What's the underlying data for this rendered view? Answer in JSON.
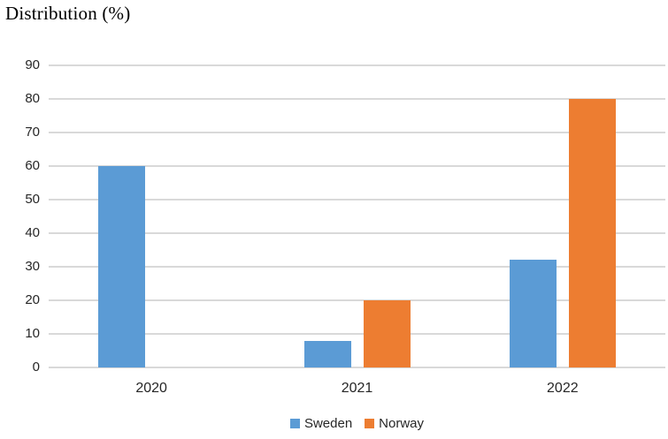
{
  "chart_data": {
    "type": "bar",
    "title": "Distribution (%)",
    "categories": [
      "2020",
      "2021",
      "2022"
    ],
    "series": [
      {
        "name": "Sweden",
        "color": "#5B9BD5",
        "values": [
          60,
          8,
          32
        ]
      },
      {
        "name": "Norway",
        "color": "#ED7D31",
        "values": [
          0,
          20,
          80
        ]
      }
    ],
    "xlabel": "",
    "ylabel": "",
    "ylim": [
      0,
      90
    ],
    "ytick_step": 10,
    "grid": true,
    "legend_position": "bottom"
  },
  "colors": {
    "gridline": "#D9D9D9",
    "text": "#262626",
    "title_text": "#000000",
    "background": "#FFFFFF"
  }
}
